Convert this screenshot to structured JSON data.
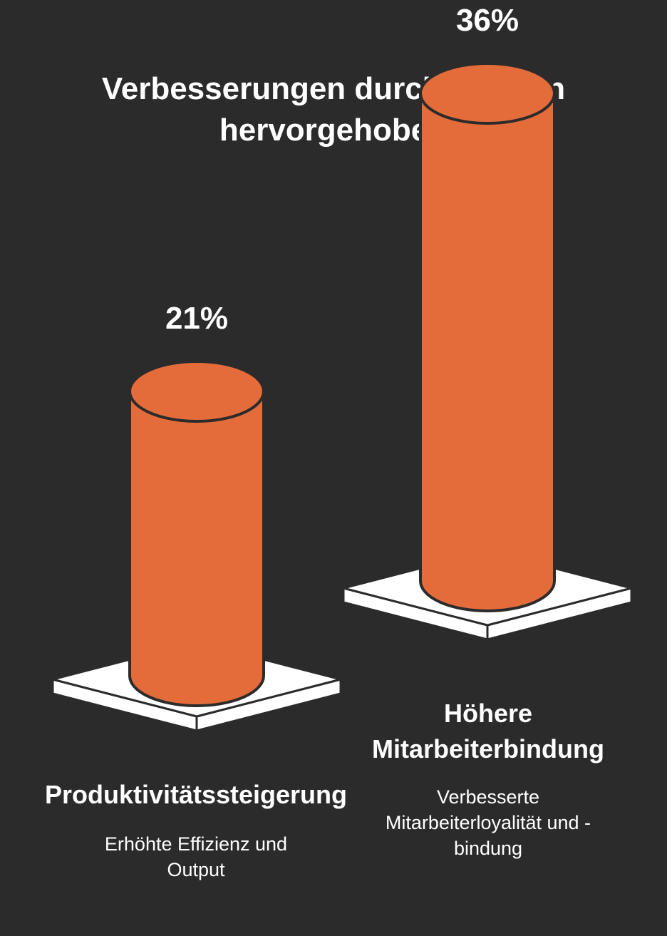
{
  "chart_data": {
    "type": "bar",
    "title": "Verbesserungen durch Studien hervorgehoben",
    "categories": [
      "Produktivitätssteigerung",
      "Höhere Mitarbeiterbindung"
    ],
    "descriptions": [
      "Erhöhte Effizienz und Output",
      "Verbesserte Mitarbeiterloyalität und -bindung"
    ],
    "values": [
      21,
      36
    ],
    "value_labels": [
      "21%",
      "36%"
    ],
    "unit": "%"
  },
  "colors": {
    "background": "#2b2b2b",
    "bar": "#e46c3b",
    "outline": "#2b2b2b",
    "pedestal": "#ffffff",
    "text": "#ffffff"
  }
}
